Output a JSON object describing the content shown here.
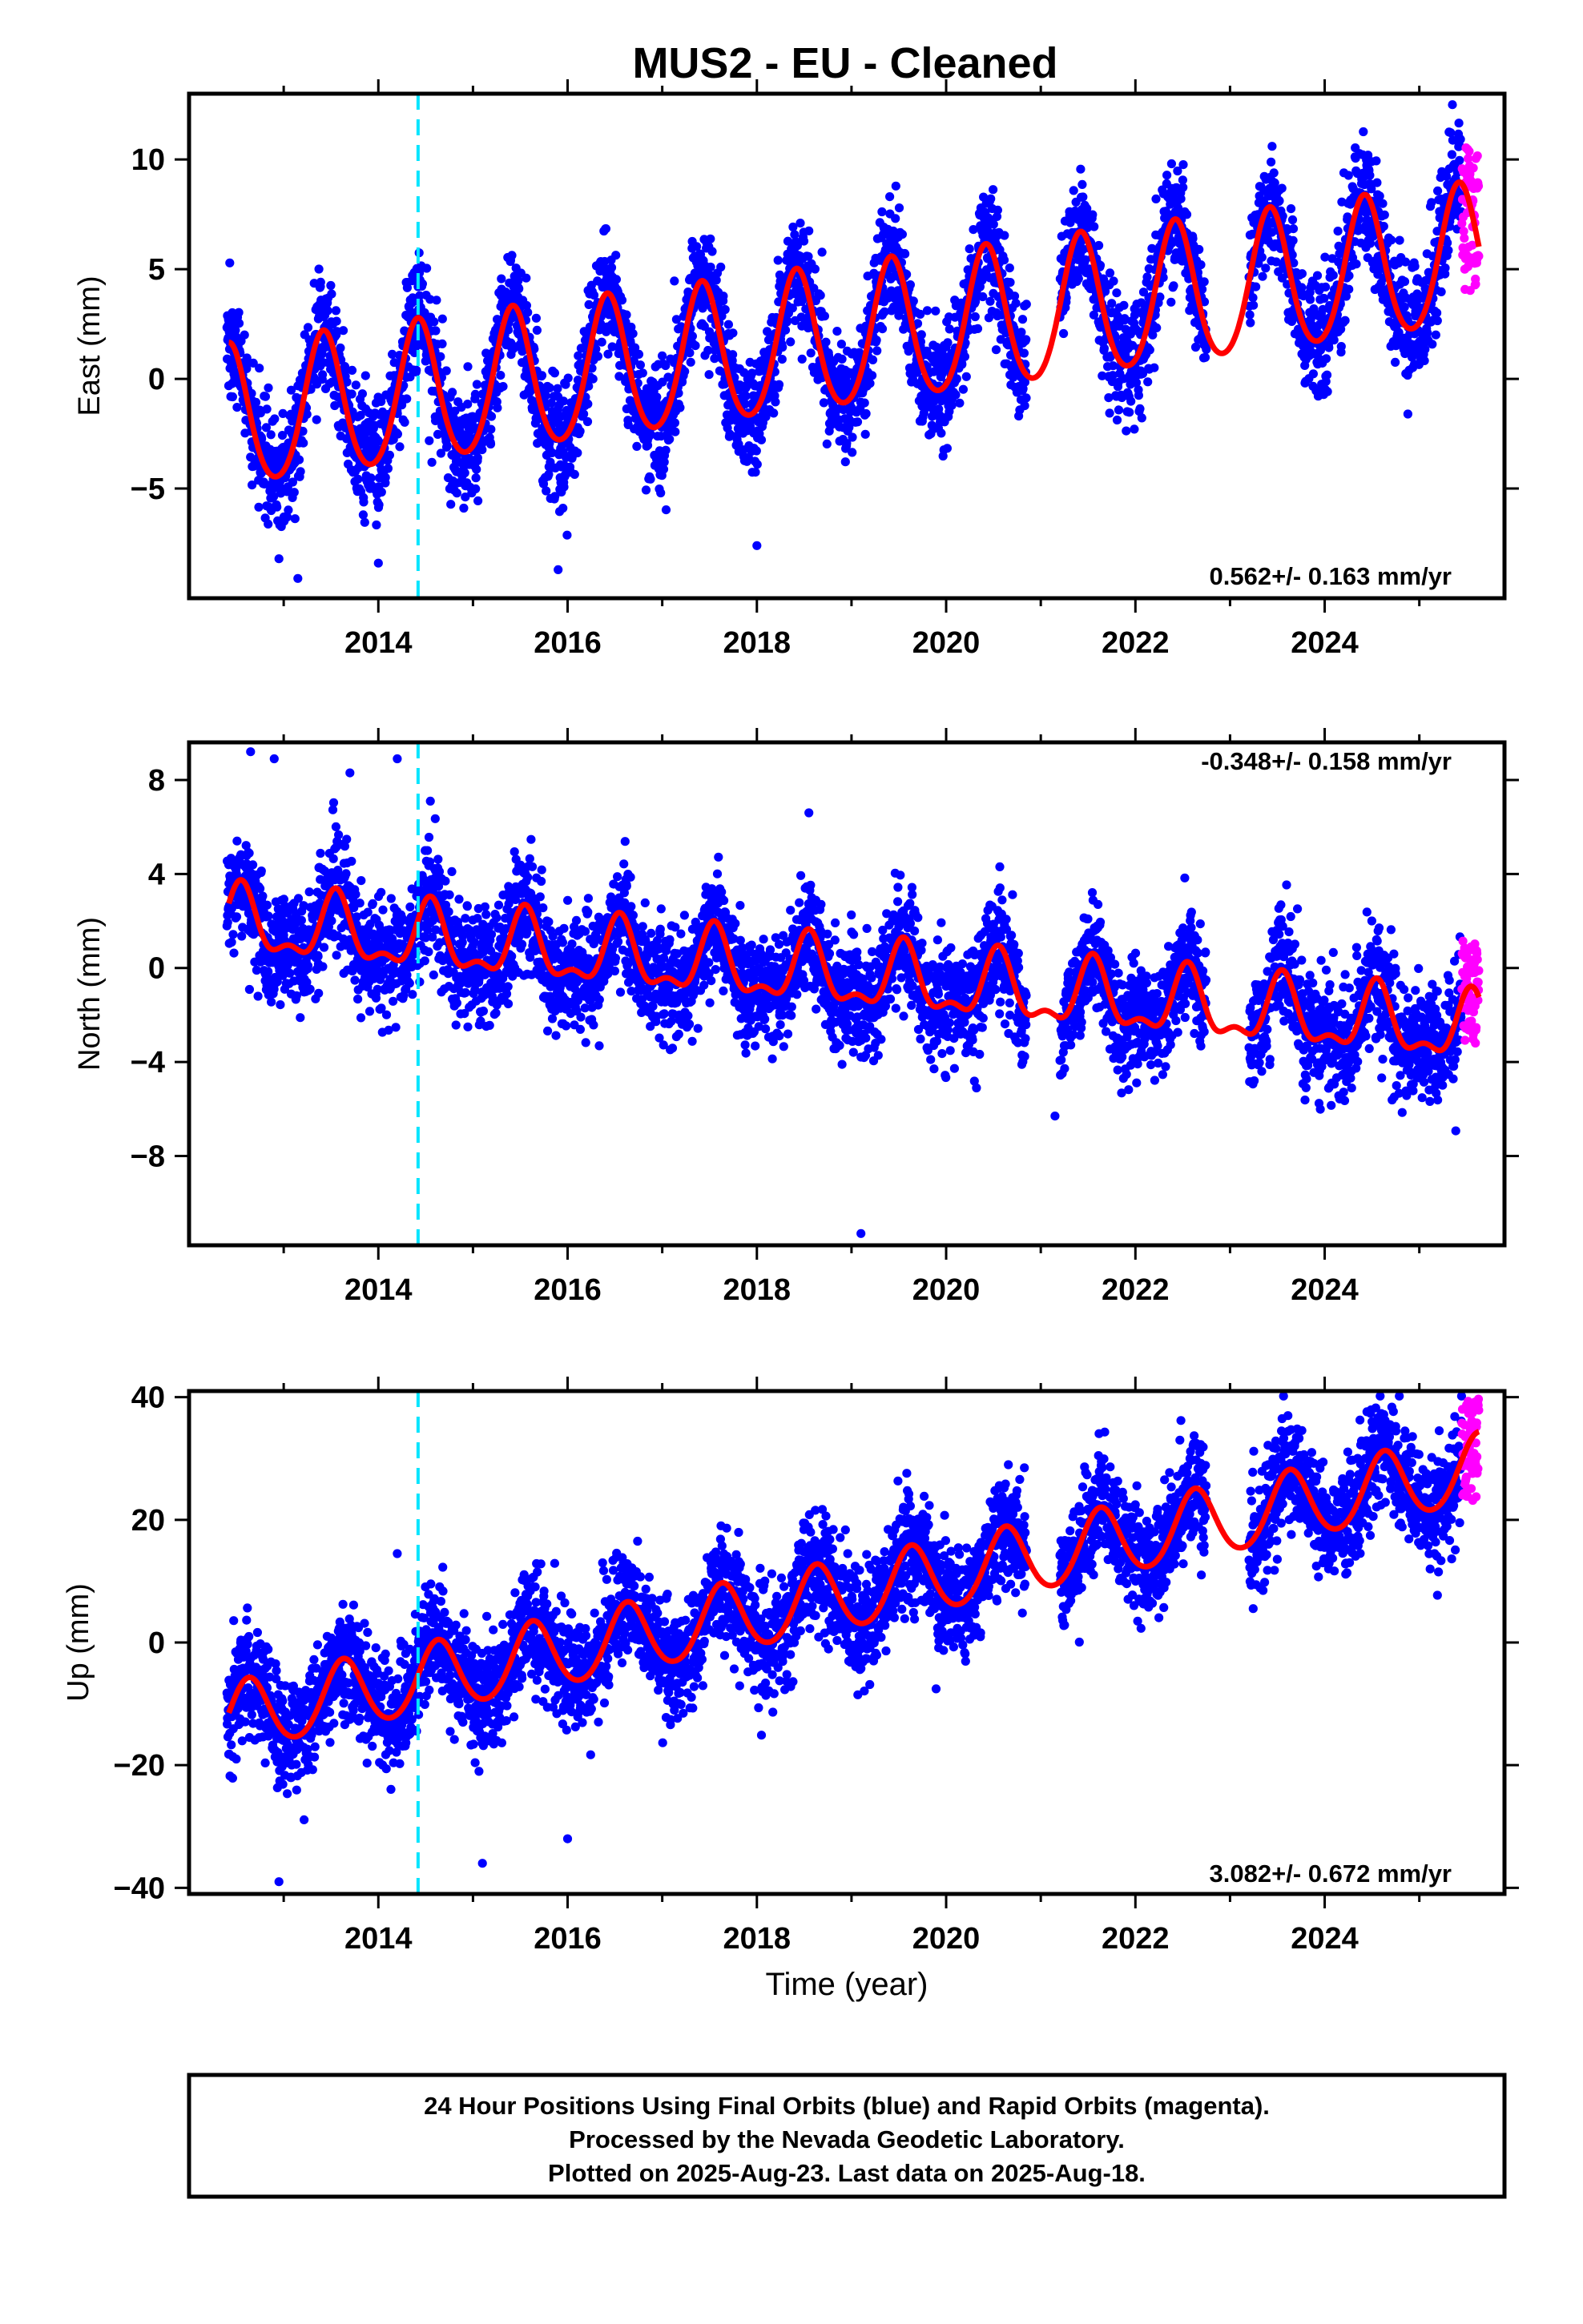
{
  "title": "MUS2  - EU - Cleaned",
  "xlabel": "Time (year)",
  "footer": [
    "24 Hour Positions Using Final Orbits (blue) and Rapid Orbits (magenta).",
    "Processed by the Nevada Geodetic Laboratory.",
    "Plotted on 2025-Aug-23. Last data on 2025-Aug-18."
  ],
  "colors": {
    "final": "#0000ff",
    "rapid": "#ff00ff",
    "model": "#ff0000",
    "event": "#00e5ff"
  },
  "event_line_year": 2014.42,
  "chart_data": [
    {
      "type": "scatter",
      "panel": "east",
      "ylabel": "East (mm)",
      "rate": "0.562+/- 0.163 mm/yr",
      "xlim": [
        2012.0,
        2025.9
      ],
      "ylim": [
        -10,
        13
      ],
      "x_ticks": [
        "2014",
        "2016",
        "2018",
        "2020",
        "2022",
        "2024"
      ],
      "y_ticks": [
        "10",
        "5",
        "0",
        "−5"
      ],
      "model": {
        "trend": 0.562,
        "offset": -1.9,
        "annual_amp": 3.2,
        "annual_phase_year": 2013.42,
        "semi_amp": 0.35,
        "start": 2012.42,
        "end": 2025.63
      },
      "series": [
        {
          "name": "Final Orbits (blue)",
          "start": 2012.4,
          "end": 2025.45,
          "scatter": 1.3,
          "gaps": [
            [
              2020.85,
              2021.2
            ],
            [
              2022.75,
              2023.2
            ]
          ],
          "outliers": [
            [
              2012.95,
              -8.2
            ],
            [
              2013.15,
              -9.1
            ],
            [
              2014.0,
              -8.4
            ],
            [
              2015.9,
              -8.7
            ],
            [
              2018.0,
              -7.6
            ],
            [
              2025.35,
              12.5
            ]
          ]
        },
        {
          "name": "Rapid Orbits (magenta)",
          "start": 2025.45,
          "end": 2025.63,
          "values_range": [
            4,
            10.6
          ]
        }
      ]
    },
    {
      "type": "scatter",
      "panel": "north",
      "ylabel": "North (mm)",
      "rate": "-0.348+/- 0.158 mm/yr",
      "xlim": [
        2012.0,
        2025.9
      ],
      "ylim": [
        -11.8,
        9.6
      ],
      "x_ticks": [
        "2014",
        "2016",
        "2018",
        "2020",
        "2022",
        "2024"
      ],
      "y_ticks": [
        "8",
        "4",
        "0",
        "−4",
        "−8"
      ],
      "model": {
        "trend": -0.348,
        "offset": 1.9,
        "annual_amp": 1.3,
        "annual_phase_year": 2013.55,
        "semi_amp": 0.6,
        "start": 2012.42,
        "end": 2025.63
      },
      "series": [
        {
          "name": "Final Orbits (blue)",
          "start": 2012.4,
          "end": 2025.45,
          "scatter": 1.2,
          "gaps": [
            [
              2020.85,
              2021.2
            ],
            [
              2022.75,
              2023.2
            ]
          ],
          "outliers": [
            [
              2012.65,
              9.2
            ],
            [
              2012.9,
              8.9
            ],
            [
              2013.7,
              8.3
            ],
            [
              2014.2,
              8.9
            ],
            [
              2014.55,
              7.1
            ],
            [
              2018.55,
              6.6
            ],
            [
              2019.1,
              -11.3
            ],
            [
              2021.15,
              -6.3
            ]
          ]
        },
        {
          "name": "Rapid Orbits (magenta)",
          "start": 2025.45,
          "end": 2025.63,
          "values_range": [
            -3.3,
            1.2
          ]
        }
      ]
    },
    {
      "type": "scatter",
      "panel": "up",
      "ylabel": "Up (mm)",
      "rate": "3.082+/- 0.672 mm/yr",
      "xlim": [
        2012.0,
        2025.9
      ],
      "ylim": [
        -41,
        41
      ],
      "x_ticks": [
        "2014",
        "2016",
        "2018",
        "2020",
        "2022",
        "2024"
      ],
      "y_ticks": [
        "40",
        "20",
        "0",
        "−20",
        "−40"
      ],
      "model": {
        "trend": 3.082,
        "offset": -12.5,
        "annual_amp": 5.6,
        "annual_phase_year": 2012.63,
        "semi_amp": 0.5,
        "start": 2012.42,
        "end": 2025.63
      },
      "series": [
        {
          "name": "Final Orbits (blue)",
          "start": 2012.4,
          "end": 2025.45,
          "scatter": 4.5,
          "gaps": [
            [
              2020.85,
              2021.2
            ],
            [
              2022.75,
              2023.2
            ]
          ],
          "outliers": [
            [
              2012.95,
              -39
            ],
            [
              2014.2,
              14.5
            ],
            [
              2015.1,
              -36
            ],
            [
              2016.0,
              -32
            ],
            [
              2023.55,
              36.5
            ],
            [
              2024.5,
              36
            ]
          ]
        },
        {
          "name": "Rapid Orbits (magenta)",
          "start": 2025.45,
          "end": 2025.63,
          "values_range": [
            23,
            40
          ]
        }
      ]
    }
  ]
}
